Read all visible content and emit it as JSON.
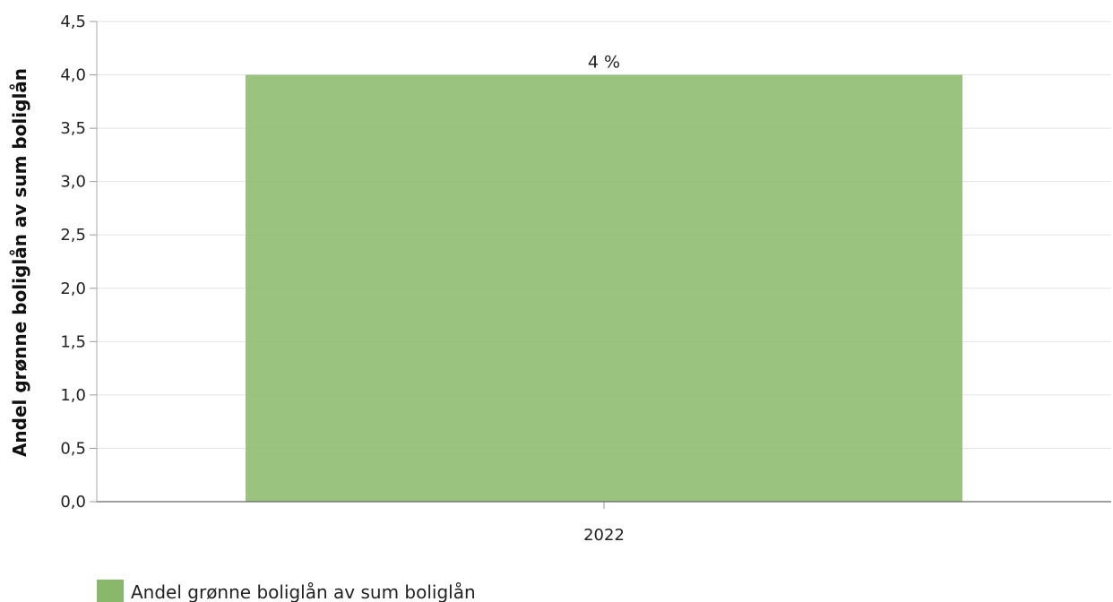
{
  "chart_data": {
    "type": "bar",
    "title": "",
    "xlabel": "",
    "ylabel": "Andel grønne boliglån av sum boliglån",
    "categories": [
      "2022"
    ],
    "series": [
      {
        "name": "Andel grønne boliglån av sum boliglån",
        "values": [
          4.0
        ],
        "data_labels": [
          "4 %"
        ],
        "color": "#8ab86a"
      }
    ],
    "ylim": [
      0,
      4.5
    ],
    "yticks": [
      "0,0",
      "0,5",
      "1,0",
      "1,5",
      "2,0",
      "2,5",
      "3,0",
      "3,5",
      "4,0",
      "4,5"
    ],
    "grid": true,
    "legend_position": "bottom-left"
  }
}
